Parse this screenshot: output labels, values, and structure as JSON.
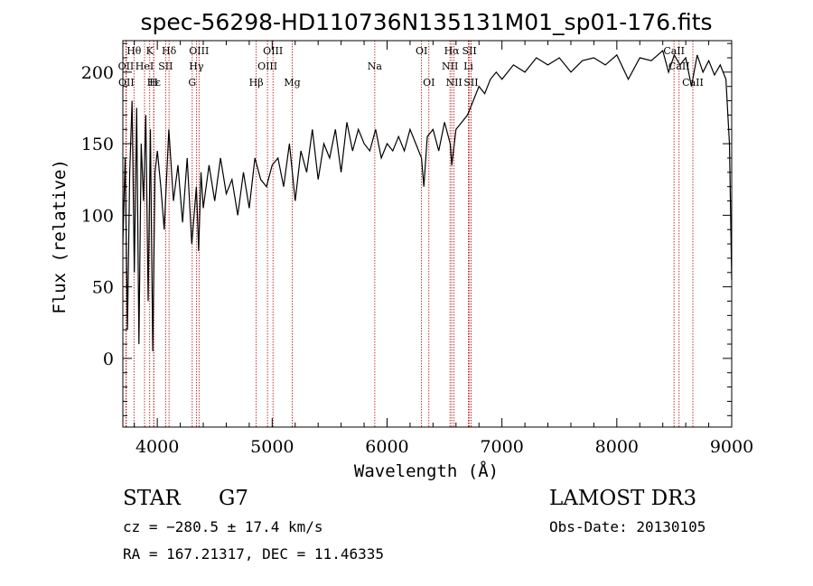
{
  "chart_data": {
    "type": "line",
    "title": "spec-56298-HD110736N135131M01_sp01-176.fits",
    "xlabel": "Wavelength (Å)",
    "ylabel": "Flux (relative)",
    "xlim": [
      3700,
      9000
    ],
    "ylim": [
      -48,
      222
    ],
    "x_ticks": [
      4000,
      5000,
      6000,
      7000,
      8000,
      9000
    ],
    "y_ticks": [
      0,
      50,
      100,
      150,
      200
    ],
    "series": [
      {
        "name": "flux",
        "x": [
          3700,
          3720,
          3740,
          3760,
          3780,
          3800,
          3820,
          3840,
          3860,
          3880,
          3900,
          3920,
          3940,
          3960,
          3980,
          4000,
          4030,
          4060,
          4100,
          4140,
          4180,
          4220,
          4260,
          4300,
          4340,
          4360,
          4380,
          4400,
          4450,
          4500,
          4550,
          4600,
          4650,
          4700,
          4750,
          4800,
          4850,
          4900,
          4950,
          5000,
          5050,
          5100,
          5150,
          5200,
          5250,
          5300,
          5350,
          5400,
          5450,
          5500,
          5550,
          5600,
          5650,
          5700,
          5750,
          5800,
          5850,
          5900,
          5950,
          6000,
          6050,
          6100,
          6150,
          6200,
          6250,
          6300,
          6320,
          6350,
          6400,
          6450,
          6500,
          6550,
          6563,
          6600,
          6650,
          6700,
          6750,
          6800,
          6850,
          6900,
          6950,
          7000,
          7100,
          7200,
          7300,
          7400,
          7500,
          7600,
          7700,
          7800,
          7900,
          8000,
          8100,
          8200,
          8300,
          8400,
          8450,
          8500,
          8550,
          8600,
          8650,
          8700,
          8750,
          8800,
          8850,
          8900,
          8950,
          8980,
          9000
        ],
        "y": [
          80,
          140,
          20,
          130,
          180,
          60,
          175,
          10,
          150,
          110,
          170,
          40,
          160,
          5,
          130,
          145,
          120,
          90,
          160,
          110,
          135,
          95,
          140,
          80,
          120,
          75,
          130,
          105,
          135,
          110,
          140,
          115,
          125,
          100,
          130,
          105,
          140,
          125,
          120,
          135,
          140,
          120,
          150,
          110,
          145,
          130,
          160,
          125,
          150,
          140,
          160,
          130,
          165,
          145,
          160,
          150,
          145,
          160,
          140,
          150,
          145,
          155,
          145,
          160,
          150,
          140,
          120,
          155,
          160,
          145,
          165,
          150,
          135,
          160,
          165,
          170,
          180,
          190,
          185,
          195,
          200,
          195,
          205,
          200,
          210,
          205,
          210,
          200,
          208,
          210,
          205,
          212,
          195,
          210,
          208,
          215,
          200,
          212,
          205,
          210,
          190,
          212,
          200,
          208,
          198,
          205,
          195,
          150,
          55
        ]
      }
    ],
    "lines": [
      {
        "label": "Hθ",
        "x": 3797,
        "row": 1
      },
      {
        "label": "K",
        "x": 3934,
        "row": 1
      },
      {
        "label": "Hδ",
        "x": 4102,
        "row": 1
      },
      {
        "label": "OIII",
        "x": 4363,
        "row": 1
      },
      {
        "label": "OIII",
        "x": 5007,
        "row": 1
      },
      {
        "label": "OI",
        "x": 6300,
        "row": 1
      },
      {
        "label": "Hα",
        "x": 6563,
        "row": 1
      },
      {
        "label": "SII",
        "x": 6717,
        "row": 1
      },
      {
        "label": "CaII",
        "x": 8498,
        "row": 1
      },
      {
        "label": "OII",
        "x": 3727,
        "row": 2
      },
      {
        "label": "HeI",
        "x": 3889,
        "row": 2
      },
      {
        "label": "SII",
        "x": 4072,
        "row": 2
      },
      {
        "label": "Hγ",
        "x": 4340,
        "row": 2
      },
      {
        "label": "OIII",
        "x": 4959,
        "row": 2
      },
      {
        "label": "Na",
        "x": 5893,
        "row": 2
      },
      {
        "label": "NII",
        "x": 6548,
        "row": 2
      },
      {
        "label": "Li",
        "x": 6708,
        "row": 2
      },
      {
        "label": "CaII",
        "x": 8542,
        "row": 2
      },
      {
        "label": "OII",
        "x": 3730,
        "row": 3
      },
      {
        "label": "Hε",
        "x": 3970,
        "row": 3
      },
      {
        "label": "H",
        "x": 3968,
        "row": 3
      },
      {
        "label": "G",
        "x": 4304,
        "row": 3
      },
      {
        "label": "Hβ",
        "x": 4861,
        "row": 3
      },
      {
        "label": "Mg",
        "x": 5175,
        "row": 3
      },
      {
        "label": "OI",
        "x": 6364,
        "row": 3
      },
      {
        "label": "NII",
        "x": 6583,
        "row": 3
      },
      {
        "label": "SII",
        "x": 6731,
        "row": 3
      },
      {
        "label": "CaII",
        "x": 8662,
        "row": 3
      }
    ]
  },
  "info": {
    "object_class": "STAR",
    "subclass": "G7",
    "survey": "LAMOST DR3",
    "cz": "cz = −280.5 ± 17.4 km/s",
    "obs_date": "Obs-Date: 20130105",
    "radec": "RA = 167.21317, DEC =  11.46335"
  },
  "colors": {
    "line_marker": "#b00000",
    "spectrum": "#000000"
  }
}
